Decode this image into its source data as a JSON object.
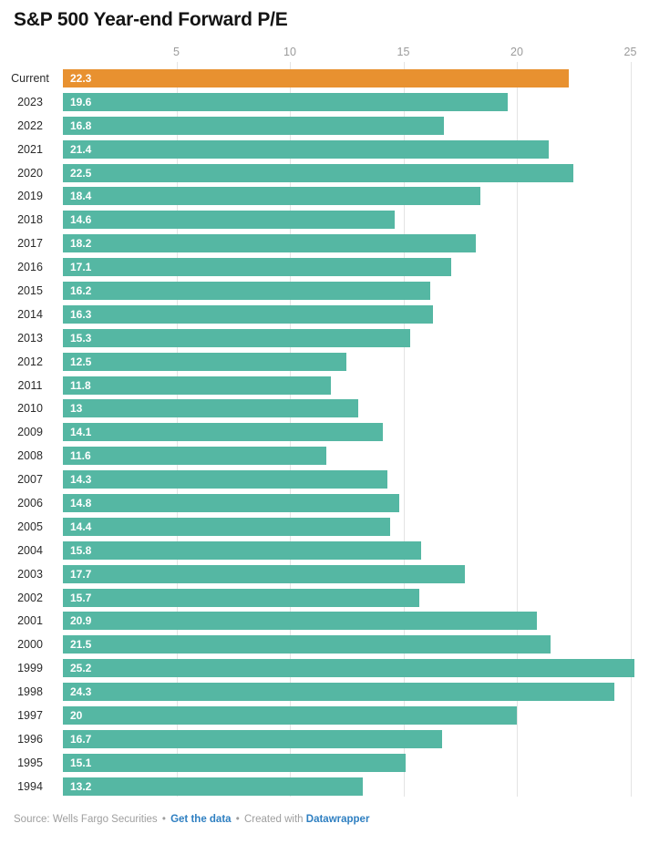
{
  "title": "S&P 500 Year-end Forward P/E",
  "chart_data": {
    "type": "bar",
    "orientation": "horizontal",
    "title": "S&P 500 Year-end Forward P/E",
    "xlabel": "",
    "ylabel": "",
    "xlim": [
      0,
      25.8
    ],
    "x_ticks": [
      5,
      10,
      15,
      20,
      25
    ],
    "grid": true,
    "legend": false,
    "categories": [
      "Current",
      "2023",
      "2022",
      "2021",
      "2020",
      "2019",
      "2018",
      "2017",
      "2016",
      "2015",
      "2014",
      "2013",
      "2012",
      "2011",
      "2010",
      "2009",
      "2008",
      "2007",
      "2006",
      "2005",
      "2004",
      "2003",
      "2002",
      "2001",
      "2000",
      "1999",
      "1998",
      "1997",
      "1996",
      "1995",
      "1994"
    ],
    "values": [
      22.3,
      19.6,
      16.8,
      21.4,
      22.5,
      18.4,
      14.6,
      18.2,
      17.1,
      16.2,
      16.3,
      15.3,
      12.5,
      11.8,
      13,
      14.1,
      11.6,
      14.3,
      14.8,
      14.4,
      15.8,
      17.7,
      15.7,
      20.9,
      21.5,
      25.2,
      24.3,
      20,
      16.7,
      15.1,
      13.2
    ],
    "value_labels": [
      "22.3",
      "19.6",
      "16.8",
      "21.4",
      "22.5",
      "18.4",
      "14.6",
      "18.2",
      "17.1",
      "16.2",
      "16.3",
      "15.3",
      "12.5",
      "11.8",
      "13",
      "14.1",
      "11.6",
      "14.3",
      "14.8",
      "14.4",
      "15.8",
      "17.7",
      "15.7",
      "20.9",
      "21.5",
      "25.2",
      "24.3",
      "20",
      "16.7",
      "15.1",
      "13.2"
    ],
    "highlight_index": 0,
    "bar_color": "#55b7a3",
    "highlight_color": "#e89130",
    "gridline_color": "#e4e4e4"
  },
  "footer": {
    "source_prefix": "Source: Wells Fargo Securities",
    "separator": "•",
    "get_data_label": "Get the data",
    "created_with": "Created with",
    "datawrapper_label": "Datawrapper"
  }
}
